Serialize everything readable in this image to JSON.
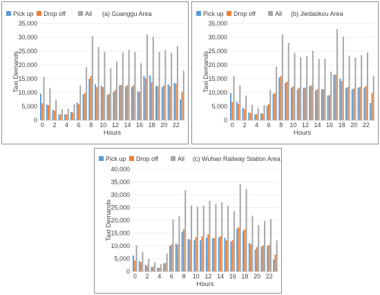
{
  "chart_data": [
    {
      "type": "bar",
      "panel_label": "(a) Guanggu Area",
      "xlabel": "Hours",
      "ylabel": "Taxi Demands",
      "ylim": [
        0,
        35000
      ],
      "yticks": [
        "0",
        "5,000",
        "10,000",
        "15,000",
        "20,000",
        "25,000",
        "30,000",
        "35,000"
      ],
      "categories": [
        "0",
        "1",
        "2",
        "3",
        "4",
        "5",
        "6",
        "7",
        "8",
        "9",
        "10",
        "11",
        "12",
        "13",
        "14",
        "15",
        "16",
        "17",
        "18",
        "19",
        "20",
        "21",
        "22",
        "23"
      ],
      "xtick_labels": [
        "0",
        "2",
        "4",
        "6",
        "8",
        "10",
        "12",
        "14",
        "16",
        "18",
        "20",
        "22"
      ],
      "legend_position": "top-left",
      "series": [
        {
          "name": "Pick up",
          "color": "#5b9bd5",
          "values": [
            9600,
            5700,
            3700,
            2200,
            2200,
            3000,
            6400,
            9400,
            15000,
            13000,
            12500,
            9200,
            10300,
            12700,
            12200,
            12000,
            10500,
            16000,
            16200,
            12500,
            12000,
            13000,
            13500,
            7500
          ]
        },
        {
          "name": "Drop off",
          "color": "#ed7d31",
          "values": [
            6100,
            5500,
            3500,
            2000,
            2100,
            2800,
            5800,
            9800,
            16000,
            12000,
            12000,
            9500,
            11000,
            12800,
            12700,
            12700,
            10200,
            15200,
            13800,
            12300,
            12500,
            12300,
            13300,
            10300
          ]
        },
        {
          "name": "All",
          "color": "#a5a5a5",
          "values": [
            15700,
            11700,
            7500,
            4000,
            4200,
            5800,
            12600,
            19200,
            30400,
            26500,
            24800,
            18800,
            21300,
            24500,
            25500,
            24700,
            20600,
            31000,
            30200,
            24700,
            25400,
            24400,
            26800,
            17900
          ]
        }
      ]
    },
    {
      "type": "bar",
      "panel_label": "(b) Jiedaokou Area",
      "xlabel": "Hours",
      "ylabel": "Taxi Demands",
      "ylim": [
        0,
        35000
      ],
      "yticks": [
        "0",
        "5,000",
        "10,000",
        "15,000",
        "20,000",
        "25,000",
        "30,000",
        "35,000"
      ],
      "categories": [
        "0",
        "1",
        "2",
        "3",
        "4",
        "5",
        "6",
        "7",
        "8",
        "9",
        "10",
        "11",
        "12",
        "13",
        "14",
        "15",
        "16",
        "17",
        "18",
        "19",
        "20",
        "21",
        "22",
        "23"
      ],
      "xtick_labels": [
        "0",
        "2",
        "4",
        "6",
        "8",
        "10",
        "12",
        "14",
        "16",
        "18",
        "20",
        "22"
      ],
      "legend_position": "top-left",
      "series": [
        {
          "name": "Pick up",
          "color": "#5b9bd5",
          "values": [
            9800,
            6700,
            4500,
            2800,
            2100,
            2500,
            5200,
            9500,
            15500,
            13500,
            11700,
            11200,
            11700,
            12300,
            10800,
            11200,
            8900,
            16500,
            15000,
            11700,
            11200,
            11800,
            11800,
            6200
          ]
        },
        {
          "name": "Drop off",
          "color": "#ed7d31",
          "values": [
            6600,
            5900,
            4000,
            2600,
            2200,
            2400,
            6000,
            9800,
            16000,
            14000,
            12300,
            11800,
            11800,
            12600,
            11300,
            11200,
            9200,
            16500,
            14200,
            12000,
            11500,
            12000,
            12400,
            9800
          ]
        },
        {
          "name": "All",
          "color": "#a5a5a5",
          "values": [
            16000,
            12600,
            8900,
            5600,
            4400,
            5400,
            11000,
            19400,
            31000,
            28000,
            24400,
            22800,
            23200,
            25100,
            22200,
            22200,
            17600,
            33000,
            30200,
            23300,
            22600,
            23500,
            24500,
            16000
          ]
        }
      ]
    },
    {
      "type": "bar",
      "panel_label": "(c) Wuhan Railway Station Area",
      "xlabel": "Hours",
      "ylabel": "Taxi Demands",
      "ylim": [
        0,
        40000
      ],
      "yticks": [
        "0",
        "5,000",
        "10,000",
        "15,000",
        "20,000",
        "25,000",
        "30,000",
        "35,000",
        "40,000"
      ],
      "categories": [
        "0",
        "1",
        "2",
        "3",
        "4",
        "5",
        "6",
        "7",
        "8",
        "9",
        "10",
        "11",
        "12",
        "13",
        "14",
        "15",
        "16",
        "17",
        "18",
        "19",
        "20",
        "21",
        "22",
        "23"
      ],
      "xtick_labels": [
        "0",
        "2",
        "4",
        "6",
        "8",
        "10",
        "12",
        "14",
        "16",
        "18",
        "20",
        "22"
      ],
      "legend_position": "top-left",
      "series": [
        {
          "name": "Pick up",
          "color": "#5b9bd5",
          "values": [
            6300,
            4100,
            2600,
            1800,
            1500,
            3200,
            10100,
            11000,
            15500,
            12800,
            12200,
            12200,
            13200,
            13000,
            13300,
            13200,
            11800,
            16800,
            16000,
            11200,
            8700,
            9700,
            10000,
            4700
          ]
        },
        {
          "name": "Drop off",
          "color": "#ed7d31",
          "values": [
            4300,
            3600,
            2300,
            1800,
            1400,
            3300,
            10600,
            10500,
            16600,
            12500,
            13500,
            13800,
            14600,
            13100,
            13800,
            12200,
            12200,
            17400,
            16500,
            10700,
            9500,
            10200,
            10500,
            6600
          ]
        },
        {
          "name": "All",
          "color": "#a5a5a5",
          "values": [
            10200,
            7700,
            4900,
            3600,
            2900,
            7000,
            20400,
            21600,
            31800,
            25800,
            25400,
            25700,
            27700,
            26400,
            27100,
            25700,
            23700,
            34200,
            32300,
            21800,
            18100,
            19800,
            20500,
            12200
          ]
        }
      ]
    }
  ]
}
